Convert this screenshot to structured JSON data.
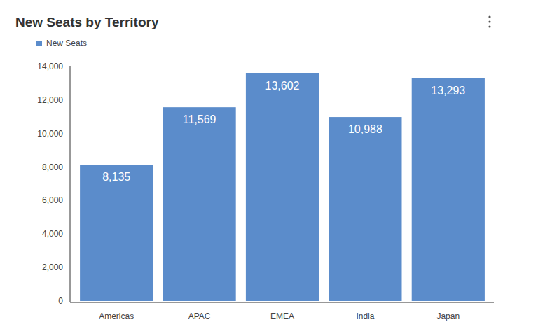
{
  "chart_data": {
    "type": "bar",
    "title": "New Seats by Territory",
    "categories": [
      "Americas",
      "APAC",
      "EMEA",
      "India",
      "Japan"
    ],
    "series": [
      {
        "name": "New Seats",
        "color": "#5b8ccb",
        "values": [
          8135,
          11569,
          13602,
          10988,
          13293
        ],
        "value_labels": [
          "8,135",
          "11,569",
          "13,602",
          "10,988",
          "13,293"
        ]
      }
    ],
    "ylim": [
      0,
      14000
    ],
    "yticks": [
      0,
      {
        "value": 2000,
        "label": "2,000"
      },
      {
        "value": 4000,
        "label": "4,000"
      },
      {
        "value": 6000,
        "label": "6,000"
      },
      {
        "value": 8000,
        "label": "8,000"
      },
      {
        "value": 10000,
        "label": "10,000"
      },
      {
        "value": 12000,
        "label": "12,000"
      },
      {
        "value": 14000,
        "label": "14,000"
      }
    ],
    "grid": false,
    "legend": "top-left",
    "data_labels": true
  }
}
